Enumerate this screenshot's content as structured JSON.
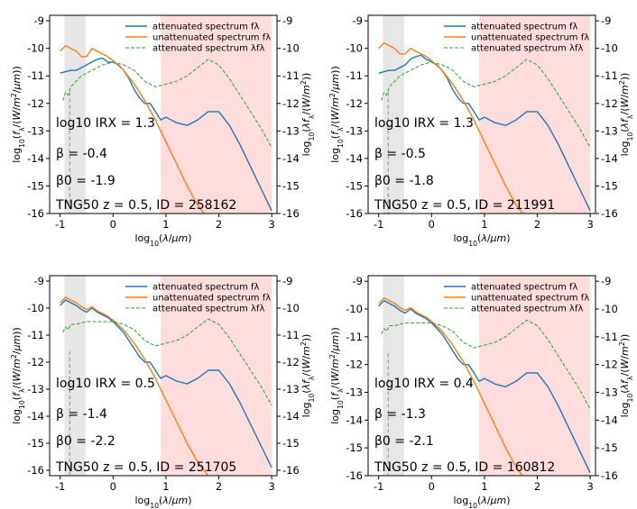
{
  "figure": {
    "x_label_text": "log10(λ/μm)",
    "y_left_label_text": "log10(fλ/(W/m²/μm))",
    "y_right_label_text": "log10(λfλ/(W/m²))"
  },
  "colors": {
    "attenuated": "#1f77b4",
    "unattenuated": "#ff7f0e",
    "lambda_f": "#2ca02c",
    "grey_band": "#e6e6e6",
    "pink_band": "#ffdddd"
  },
  "chart_data": [
    {
      "type": "line",
      "title": "",
      "xlabel": "log10(λ/μm)",
      "ylabel": "log10(fλ/(W/m²/μm))",
      "ylabel_right": "log10(λfλ/(W/m²))",
      "xlim": [
        -1.2,
        3.1
      ],
      "ylim": [
        -16,
        -8.8
      ],
      "ylim_right": [
        -16,
        -8.8
      ],
      "x_ticks": [
        -1,
        0,
        1,
        2,
        3
      ],
      "y_ticks": [
        -16,
        -15,
        -14,
        -13,
        -12,
        -11,
        -10,
        -9
      ],
      "legend": [
        "attenuated spectrum fλ",
        "unattenuated spectrum fλ",
        "attenuated spectrum λfλ"
      ],
      "legend_position": "top-right",
      "annotations": {
        "irx": "log10 IRX = 1.3",
        "beta": "β = -0.4",
        "beta0": "β0 = -1.9",
        "label": "TNG50 z = 0.5, ID = 258162"
      },
      "shaded_bands": [
        [
          -0.92,
          -0.52
        ],
        [
          0.9,
          3.0
        ]
      ],
      "dashed_line_x": -0.82,
      "series": [
        {
          "name": "attenuated spectrum fλ",
          "x": [
            -1.0,
            -0.9,
            -0.8,
            -0.7,
            -0.6,
            -0.5,
            -0.4,
            -0.3,
            -0.2,
            -0.1,
            0.0,
            0.1,
            0.2,
            0.3,
            0.4,
            0.5,
            0.6,
            0.7,
            0.8,
            0.9,
            1.0,
            1.2,
            1.4,
            1.6,
            1.8,
            2.0,
            2.2,
            2.4,
            2.6,
            2.8,
            3.0
          ],
          "values": [
            -10.9,
            -10.85,
            -10.8,
            -10.8,
            -10.7,
            -10.6,
            -10.5,
            -10.4,
            -10.35,
            -10.5,
            -10.5,
            -10.6,
            -10.8,
            -11.1,
            -11.5,
            -11.8,
            -12.0,
            -12.0,
            -12.3,
            -12.6,
            -12.5,
            -12.7,
            -12.8,
            -12.6,
            -12.3,
            -12.3,
            -12.8,
            -13.5,
            -14.3,
            -15.1,
            -15.9
          ]
        },
        {
          "name": "unattenuated spectrum fλ",
          "x": [
            -1.0,
            -0.9,
            -0.8,
            -0.7,
            -0.6,
            -0.5,
            -0.4,
            -0.3,
            -0.2,
            -0.1,
            0.0,
            0.2,
            0.4,
            0.6,
            0.8,
            1.0,
            1.2,
            1.4,
            1.6,
            1.8
          ],
          "values": [
            -10.1,
            -9.9,
            -10.0,
            -10.1,
            -10.3,
            -10.3,
            -10.0,
            -10.1,
            -10.2,
            -10.3,
            -10.45,
            -10.8,
            -11.3,
            -11.9,
            -12.6,
            -13.4,
            -14.2,
            -15.0,
            -15.7,
            -16.2
          ]
        },
        {
          "name": "attenuated spectrum λfλ",
          "x": [
            -0.95,
            -0.9,
            -0.85,
            -0.8,
            -0.7,
            -0.6,
            -0.5,
            -0.4,
            -0.3,
            -0.2,
            -0.1,
            0.0,
            0.2,
            0.4,
            0.6,
            0.8,
            1.0,
            1.2,
            1.4,
            1.6,
            1.8,
            2.0,
            2.2,
            2.4,
            2.6,
            2.8,
            3.0
          ],
          "values": [
            -11.9,
            -11.6,
            -11.7,
            -11.4,
            -11.2,
            -11.0,
            -10.9,
            -10.8,
            -10.7,
            -10.6,
            -10.55,
            -10.5,
            -10.6,
            -10.8,
            -11.2,
            -11.4,
            -11.3,
            -11.2,
            -11.0,
            -10.7,
            -10.4,
            -10.6,
            -11.1,
            -11.7,
            -12.3,
            -12.9,
            -13.6
          ]
        }
      ]
    },
    {
      "type": "line",
      "title": "",
      "xlabel": "log10(λ/μm)",
      "ylabel": "log10(fλ/(W/m²/μm))",
      "ylabel_right": "log10(λfλ/(W/m²))",
      "xlim": [
        -1.2,
        3.1
      ],
      "ylim": [
        -16,
        -8.8
      ],
      "ylim_right": [
        -16,
        -8.8
      ],
      "x_ticks": [
        -1,
        0,
        1,
        2,
        3
      ],
      "y_ticks": [
        -16,
        -15,
        -14,
        -13,
        -12,
        -11,
        -10,
        -9
      ],
      "legend": [
        "attenuated spectrum fλ",
        "unattenuated spectrum fλ",
        "attenuated spectrum λfλ"
      ],
      "legend_position": "top-right",
      "annotations": {
        "irx": "log10 IRX = 1.3",
        "beta": "β = -0.5",
        "beta0": "β0 = -1.8",
        "label": "TNG50 z = 0.5, ID = 211991"
      },
      "shaded_bands": [
        [
          -0.92,
          -0.52
        ],
        [
          0.9,
          3.0
        ]
      ],
      "dashed_line_x": -0.82,
      "series": [
        {
          "name": "attenuated spectrum fλ",
          "x": [
            -1.0,
            -0.9,
            -0.8,
            -0.7,
            -0.6,
            -0.5,
            -0.4,
            -0.3,
            -0.2,
            -0.1,
            0.0,
            0.1,
            0.2,
            0.3,
            0.4,
            0.5,
            0.6,
            0.7,
            0.8,
            0.9,
            1.0,
            1.2,
            1.4,
            1.6,
            1.8,
            2.0,
            2.2,
            2.4,
            2.6,
            2.8,
            3.0
          ],
          "values": [
            -10.9,
            -10.85,
            -10.8,
            -10.8,
            -10.7,
            -10.6,
            -10.4,
            -10.3,
            -10.25,
            -10.4,
            -10.5,
            -10.6,
            -10.8,
            -11.1,
            -11.5,
            -11.8,
            -12.0,
            -12.0,
            -12.3,
            -12.6,
            -12.5,
            -12.7,
            -12.8,
            -12.6,
            -12.3,
            -12.3,
            -12.8,
            -13.5,
            -14.3,
            -15.1,
            -15.9
          ]
        },
        {
          "name": "unattenuated spectrum fλ",
          "x": [
            -1.0,
            -0.9,
            -0.8,
            -0.7,
            -0.6,
            -0.5,
            -0.4,
            -0.3,
            -0.2,
            -0.1,
            0.0,
            0.2,
            0.4,
            0.6,
            0.8,
            1.0,
            1.2,
            1.4,
            1.6,
            1.8
          ],
          "values": [
            -10.0,
            -9.8,
            -9.9,
            -10.0,
            -10.2,
            -10.2,
            -10.0,
            -10.1,
            -10.2,
            -10.3,
            -10.45,
            -10.8,
            -11.3,
            -11.9,
            -12.6,
            -13.4,
            -14.2,
            -15.0,
            -15.7,
            -16.2
          ]
        },
        {
          "name": "attenuated spectrum λfλ",
          "x": [
            -0.95,
            -0.9,
            -0.85,
            -0.8,
            -0.7,
            -0.6,
            -0.5,
            -0.4,
            -0.3,
            -0.2,
            -0.1,
            0.0,
            0.2,
            0.4,
            0.6,
            0.8,
            1.0,
            1.2,
            1.4,
            1.6,
            1.8,
            2.0,
            2.2,
            2.4,
            2.6,
            2.8,
            3.0
          ],
          "values": [
            -11.9,
            -11.6,
            -11.7,
            -11.4,
            -11.2,
            -11.0,
            -10.9,
            -10.8,
            -10.7,
            -10.6,
            -10.55,
            -10.5,
            -10.6,
            -10.8,
            -11.2,
            -11.4,
            -11.3,
            -11.2,
            -11.0,
            -10.7,
            -10.4,
            -10.6,
            -11.1,
            -11.7,
            -12.3,
            -12.9,
            -13.6
          ]
        }
      ]
    },
    {
      "type": "line",
      "title": "",
      "xlabel": "log10(λ/μm)",
      "ylabel": "log10(fλ/(W/m²/μm))",
      "ylabel_right": "log10(λfλ/(W/m²))",
      "xlim": [
        -1.2,
        3.1
      ],
      "ylim": [
        -16.2,
        -8.8
      ],
      "ylim_right": [
        -16.2,
        -8.8
      ],
      "x_ticks": [
        -1,
        0,
        1,
        2,
        3
      ],
      "y_ticks": [
        -16,
        -15,
        -14,
        -13,
        -12,
        -11,
        -10,
        -9
      ],
      "legend": [
        "attenuated spectrum fλ",
        "unattenuated spectrum fλ",
        "attenuated spectrum λfλ"
      ],
      "legend_position": "top-right",
      "annotations": {
        "irx": "log10 IRX = 0.5",
        "beta": "β = -1.4",
        "beta0": "β0 = -2.2",
        "label": "TNG50 z = 0.5, ID = 251705"
      },
      "shaded_bands": [
        [
          -0.92,
          -0.52
        ],
        [
          0.9,
          3.0
        ]
      ],
      "dashed_line_x": -0.82,
      "series": [
        {
          "name": "attenuated spectrum fλ",
          "x": [
            -1.0,
            -0.9,
            -0.8,
            -0.7,
            -0.6,
            -0.5,
            -0.4,
            -0.3,
            -0.2,
            -0.1,
            0.0,
            0.1,
            0.2,
            0.3,
            0.4,
            0.5,
            0.6,
            0.7,
            0.8,
            0.9,
            1.0,
            1.2,
            1.4,
            1.6,
            1.8,
            2.0,
            2.2,
            2.4,
            2.6,
            2.8,
            3.0
          ],
          "values": [
            -9.9,
            -9.7,
            -9.8,
            -9.9,
            -10.05,
            -10.15,
            -10.0,
            -10.15,
            -10.25,
            -10.35,
            -10.5,
            -10.7,
            -10.9,
            -11.2,
            -11.5,
            -11.8,
            -12.0,
            -12.0,
            -12.3,
            -12.6,
            -12.5,
            -12.7,
            -12.8,
            -12.6,
            -12.3,
            -12.3,
            -12.8,
            -13.5,
            -14.3,
            -15.1,
            -15.9
          ]
        },
        {
          "name": "unattenuated spectrum fλ",
          "x": [
            -1.0,
            -0.9,
            -0.8,
            -0.7,
            -0.6,
            -0.5,
            -0.4,
            -0.3,
            -0.2,
            -0.1,
            0.0,
            0.2,
            0.4,
            0.6,
            0.8,
            1.0,
            1.2,
            1.4,
            1.6,
            1.8
          ],
          "values": [
            -9.8,
            -9.6,
            -9.7,
            -9.8,
            -9.95,
            -10.05,
            -9.95,
            -10.1,
            -10.2,
            -10.3,
            -10.45,
            -10.8,
            -11.3,
            -11.9,
            -12.6,
            -13.4,
            -14.2,
            -15.0,
            -15.7,
            -16.2
          ]
        },
        {
          "name": "attenuated spectrum λfλ",
          "x": [
            -0.95,
            -0.9,
            -0.85,
            -0.8,
            -0.7,
            -0.6,
            -0.5,
            -0.4,
            -0.3,
            -0.2,
            -0.1,
            0.0,
            0.2,
            0.4,
            0.6,
            0.8,
            1.0,
            1.2,
            1.4,
            1.6,
            1.8,
            2.0,
            2.2,
            2.4,
            2.6,
            2.8,
            3.0
          ],
          "values": [
            -10.9,
            -10.7,
            -10.8,
            -10.6,
            -10.6,
            -10.55,
            -10.5,
            -10.5,
            -10.5,
            -10.5,
            -10.5,
            -10.5,
            -10.6,
            -10.8,
            -11.2,
            -11.4,
            -11.3,
            -11.2,
            -11.0,
            -10.7,
            -10.4,
            -10.6,
            -11.1,
            -11.7,
            -12.3,
            -12.9,
            -13.6
          ]
        }
      ]
    },
    {
      "type": "line",
      "title": "",
      "xlabel": "log10(λ/μm)",
      "ylabel": "log10(fλ/(W/m²/μm))",
      "ylabel_right": "log10(λfλ/(W/m²))",
      "xlim": [
        -1.2,
        3.1
      ],
      "ylim": [
        -16,
        -8.8
      ],
      "ylim_right": [
        -16,
        -8.8
      ],
      "x_ticks": [
        -1,
        0,
        1,
        2,
        3
      ],
      "y_ticks": [
        -16,
        -15,
        -14,
        -13,
        -12,
        -11,
        -10,
        -9
      ],
      "legend": [
        "attenuated spectrum fλ",
        "unattenuated spectrum fλ",
        "attenuated spectrum λfλ"
      ],
      "legend_position": "top-right",
      "annotations": {
        "irx": "log10 IRX = 0.4",
        "beta": "β = -1.3",
        "beta0": "β0 = -2.1",
        "label": "TNG50 z = 0.5, ID = 160812"
      },
      "shaded_bands": [
        [
          -0.92,
          -0.52
        ],
        [
          0.9,
          3.0
        ]
      ],
      "dashed_line_x": -0.82,
      "series": [
        {
          "name": "attenuated spectrum fλ",
          "x": [
            -1.0,
            -0.9,
            -0.8,
            -0.7,
            -0.6,
            -0.5,
            -0.4,
            -0.3,
            -0.2,
            -0.1,
            0.0,
            0.1,
            0.2,
            0.3,
            0.4,
            0.5,
            0.6,
            0.7,
            0.8,
            0.9,
            1.0,
            1.2,
            1.4,
            1.6,
            1.8,
            2.0,
            2.2,
            2.4,
            2.6,
            2.8,
            3.0
          ],
          "values": [
            -9.9,
            -9.7,
            -9.8,
            -9.9,
            -10.05,
            -10.15,
            -10.0,
            -10.15,
            -10.25,
            -10.35,
            -10.5,
            -10.7,
            -10.9,
            -11.2,
            -11.5,
            -11.8,
            -12.0,
            -12.0,
            -12.3,
            -12.6,
            -12.5,
            -12.7,
            -12.8,
            -12.6,
            -12.3,
            -12.3,
            -12.8,
            -13.5,
            -14.3,
            -15.1,
            -15.9
          ]
        },
        {
          "name": "unattenuated spectrum fλ",
          "x": [
            -1.0,
            -0.9,
            -0.8,
            -0.7,
            -0.6,
            -0.5,
            -0.4,
            -0.3,
            -0.2,
            -0.1,
            0.0,
            0.2,
            0.4,
            0.6,
            0.8,
            1.0,
            1.2,
            1.4,
            1.6,
            1.8
          ],
          "values": [
            -9.8,
            -9.6,
            -9.7,
            -9.8,
            -9.95,
            -10.05,
            -9.95,
            -10.1,
            -10.2,
            -10.3,
            -10.45,
            -10.8,
            -11.3,
            -11.9,
            -12.6,
            -13.4,
            -14.2,
            -15.0,
            -15.7,
            -16.2
          ]
        },
        {
          "name": "attenuated spectrum λfλ",
          "x": [
            -0.95,
            -0.9,
            -0.85,
            -0.8,
            -0.7,
            -0.6,
            -0.5,
            -0.4,
            -0.3,
            -0.2,
            -0.1,
            0.0,
            0.2,
            0.4,
            0.6,
            0.8,
            1.0,
            1.2,
            1.4,
            1.6,
            1.8,
            2.0,
            2.2,
            2.4,
            2.6,
            2.8,
            3.0
          ],
          "values": [
            -10.9,
            -10.7,
            -10.8,
            -10.6,
            -10.6,
            -10.55,
            -10.5,
            -10.5,
            -10.5,
            -10.5,
            -10.5,
            -10.5,
            -10.6,
            -10.8,
            -11.2,
            -11.4,
            -11.3,
            -11.2,
            -11.0,
            -10.7,
            -10.4,
            -10.6,
            -11.1,
            -11.7,
            -12.3,
            -12.9,
            -13.6
          ]
        }
      ]
    }
  ]
}
